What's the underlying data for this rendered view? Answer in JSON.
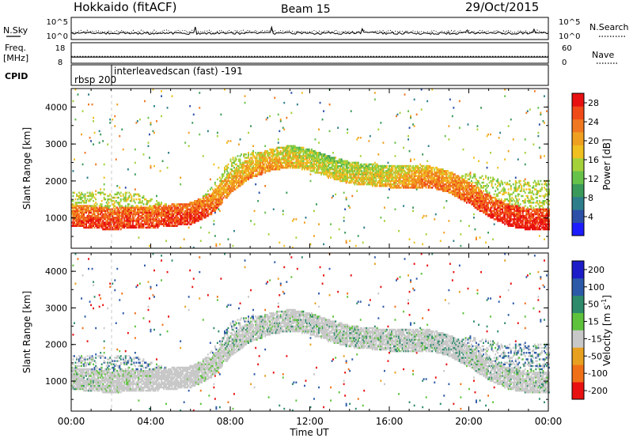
{
  "header": {
    "station": "Hokkaido (fitACF)",
    "beam": "Beam 15",
    "date": "29/Oct/2015"
  },
  "summary": {
    "nsky_label": "N.Sky",
    "nsearch_label": "N.Search",
    "noise_ticks": [
      "10^5",
      "10^0"
    ],
    "freq_label": "Freq.",
    "freq_unit": "[MHz]",
    "freq_ticks": [
      "18",
      "8"
    ],
    "nave_label": "Nave",
    "nave_ticks": [
      "60",
      "0"
    ],
    "cpid_label": "CPID",
    "cpid_first": "rbsp 200",
    "cpid_second": "interleavedscan (fast) -191"
  },
  "axes": {
    "ylabel": "Slant Range [km]",
    "yticks": [
      "1000",
      "2000",
      "3000",
      "4000"
    ],
    "ytick_values": [
      1000,
      2000,
      3000,
      4000
    ],
    "ylim": [
      180,
      4500
    ],
    "xlabel": "Time UT",
    "xticks": [
      "00:00",
      "04:00",
      "08:00",
      "12:00",
      "16:00",
      "20:00",
      "00:00"
    ],
    "xtick_hours": [
      0,
      4,
      8,
      12,
      16,
      20,
      24
    ],
    "xlim_hours": [
      0,
      24
    ]
  },
  "power_scale": {
    "label": "Power [dB]",
    "ticks": [
      "4",
      "8",
      "12",
      "16",
      "20",
      "24",
      "28"
    ],
    "colors": [
      "#1c1cff",
      "#2c4fa8",
      "#2d7e8a",
      "#3a9a5a",
      "#67c24a",
      "#a4d13a",
      "#f0c020",
      "#f0a020",
      "#f07820",
      "#f04a18",
      "#e81010"
    ]
  },
  "velocity_scale": {
    "label": "Velocity [m s",
    "label_sup": "-1",
    "label_end": "]",
    "ticks": [
      "200",
      "100",
      "50",
      "15",
      "-15",
      "-50",
      "-100",
      "-200"
    ],
    "colors": [
      "#1c1cc8",
      "#2c5aa8",
      "#2d8a6a",
      "#5ec23c",
      "#c8c8c8",
      "#e8a020",
      "#f07018",
      "#e81010"
    ]
  },
  "chart_data": [
    {
      "type": "heatmap",
      "parameter": "Power",
      "units": "dB",
      "color_range": [
        0,
        30
      ],
      "x_hours": [
        0,
        1,
        2,
        3,
        4,
        5,
        6,
        7,
        8,
        9,
        10,
        11,
        12,
        13,
        14,
        15,
        16,
        17,
        18,
        19,
        20,
        21,
        22,
        23,
        24
      ],
      "lower_band_km": [
        1000,
        950,
        900,
        950,
        950,
        1000,
        1050,
        1300,
        1900,
        2300,
        2500,
        2600,
        2500,
        2300,
        2150,
        2100,
        2050,
        2050,
        2050,
        1900,
        1600,
        1250,
        1000,
        900,
        900
      ],
      "upper_band_km": [
        1700,
        1700,
        1700,
        1700,
        1500,
        1300,
        1300,
        1800,
        2600,
        2800,
        2750,
        2800,
        2700,
        2600,
        2400,
        2300,
        2250,
        2250,
        2300,
        2200,
        2200,
        2100,
        2000,
        2000,
        2000
      ],
      "core_power_db": [
        24,
        26,
        26,
        26,
        25,
        26,
        26,
        24,
        20,
        20,
        20,
        18,
        16,
        16,
        16,
        17,
        18,
        20,
        22,
        22,
        24,
        26,
        28,
        28,
        28
      ],
      "noise_sky_level": 1,
      "noise_search_level": 1,
      "freq_mhz": 11,
      "nave": 20
    },
    {
      "type": "heatmap",
      "parameter": "Velocity",
      "units": "m s^-1",
      "color_range": [
        -200,
        200
      ],
      "x_hours": [
        0,
        1,
        2,
        3,
        4,
        5,
        6,
        7,
        8,
        9,
        10,
        11,
        12,
        13,
        14,
        15,
        16,
        17,
        18,
        19,
        20,
        21,
        22,
        23,
        24
      ],
      "lower_band_km": [
        1000,
        950,
        900,
        950,
        950,
        1000,
        1050,
        1300,
        1900,
        2300,
        2500,
        2600,
        2500,
        2300,
        2150,
        2100,
        2050,
        2050,
        2050,
        1900,
        1600,
        1250,
        1000,
        900,
        900
      ],
      "upper_band_km": [
        1700,
        1700,
        1700,
        1700,
        1500,
        1300,
        1300,
        1800,
        2600,
        2800,
        2750,
        2800,
        2700,
        2600,
        2400,
        2300,
        2250,
        2250,
        2300,
        2200,
        2200,
        2100,
        2000,
        2000,
        2000
      ],
      "core_velocity_ms": [
        0,
        0,
        -20,
        -30,
        -40,
        -50,
        -40,
        -20,
        0,
        0,
        0,
        0,
        0,
        0,
        0,
        0,
        0,
        0,
        0,
        30,
        0,
        0,
        0,
        0,
        0
      ]
    }
  ]
}
